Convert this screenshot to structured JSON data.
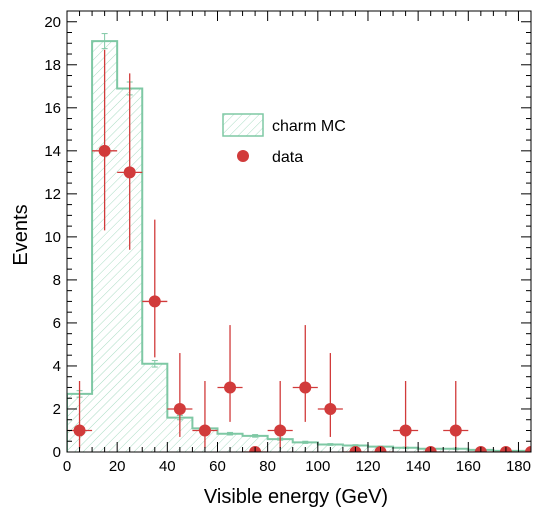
{
  "chart_data": {
    "type": "histogram",
    "xlabel": "Visible energy (GeV)",
    "ylabel": "Events",
    "xlim": [
      0,
      185
    ],
    "ylim": [
      0,
      20.5
    ],
    "xticks": [
      "0",
      "20",
      "40",
      "60",
      "80",
      "100",
      "120",
      "140",
      "160",
      "180"
    ],
    "yticks": [
      "0",
      "2",
      "4",
      "6",
      "8",
      "10",
      "12",
      "14",
      "16",
      "18",
      "20"
    ],
    "legend": {
      "position": "upper-middle",
      "entries": [
        "charm MC",
        "data"
      ]
    },
    "grid": false,
    "series": [
      {
        "name": "charm MC",
        "kind": "hatched-histogram",
        "color": "#7ec8a4",
        "bin_edges": [
          0,
          10,
          20,
          30,
          40,
          50,
          60,
          70,
          80,
          90,
          100,
          110,
          120,
          130,
          140,
          150,
          160,
          170,
          180,
          190
        ],
        "values": [
          2.7,
          19.1,
          16.9,
          4.1,
          1.6,
          1.1,
          0.85,
          0.75,
          0.6,
          0.45,
          0.35,
          0.3,
          0.25,
          0.2,
          0.15,
          0.15,
          0.1,
          0.05,
          0.05
        ],
        "errors": [
          0.15,
          0.35,
          0.3,
          0.15,
          0.1,
          0.08,
          0.06,
          0.06,
          0.05,
          0.05,
          0.04,
          0.04,
          0.03,
          0.03,
          0.03,
          0.03,
          0.02,
          0.02,
          0.02
        ]
      },
      {
        "name": "data",
        "kind": "points-with-errors",
        "color": "#d13b3b",
        "x": [
          5,
          15,
          25,
          35,
          45,
          55,
          65,
          75,
          85,
          95,
          105,
          115,
          125,
          135,
          145,
          155,
          165,
          175,
          185
        ],
        "y": [
          1,
          14,
          13,
          7,
          2,
          1,
          3,
          0,
          1,
          3,
          2,
          0,
          0,
          1,
          0,
          1,
          0,
          0,
          0
        ],
        "yerr_low": [
          0.83,
          3.7,
          3.6,
          2.6,
          1.3,
          0.83,
          1.6,
          0,
          0.83,
          1.6,
          1.3,
          0,
          0,
          0.83,
          0,
          0.83,
          0,
          0,
          0
        ],
        "yerr_high": [
          2.3,
          4.7,
          4.6,
          3.8,
          2.6,
          2.3,
          2.9,
          0,
          2.3,
          2.9,
          2.6,
          0,
          0,
          2.3,
          0,
          2.3,
          0,
          0,
          0
        ],
        "xerr": 5
      }
    ]
  }
}
